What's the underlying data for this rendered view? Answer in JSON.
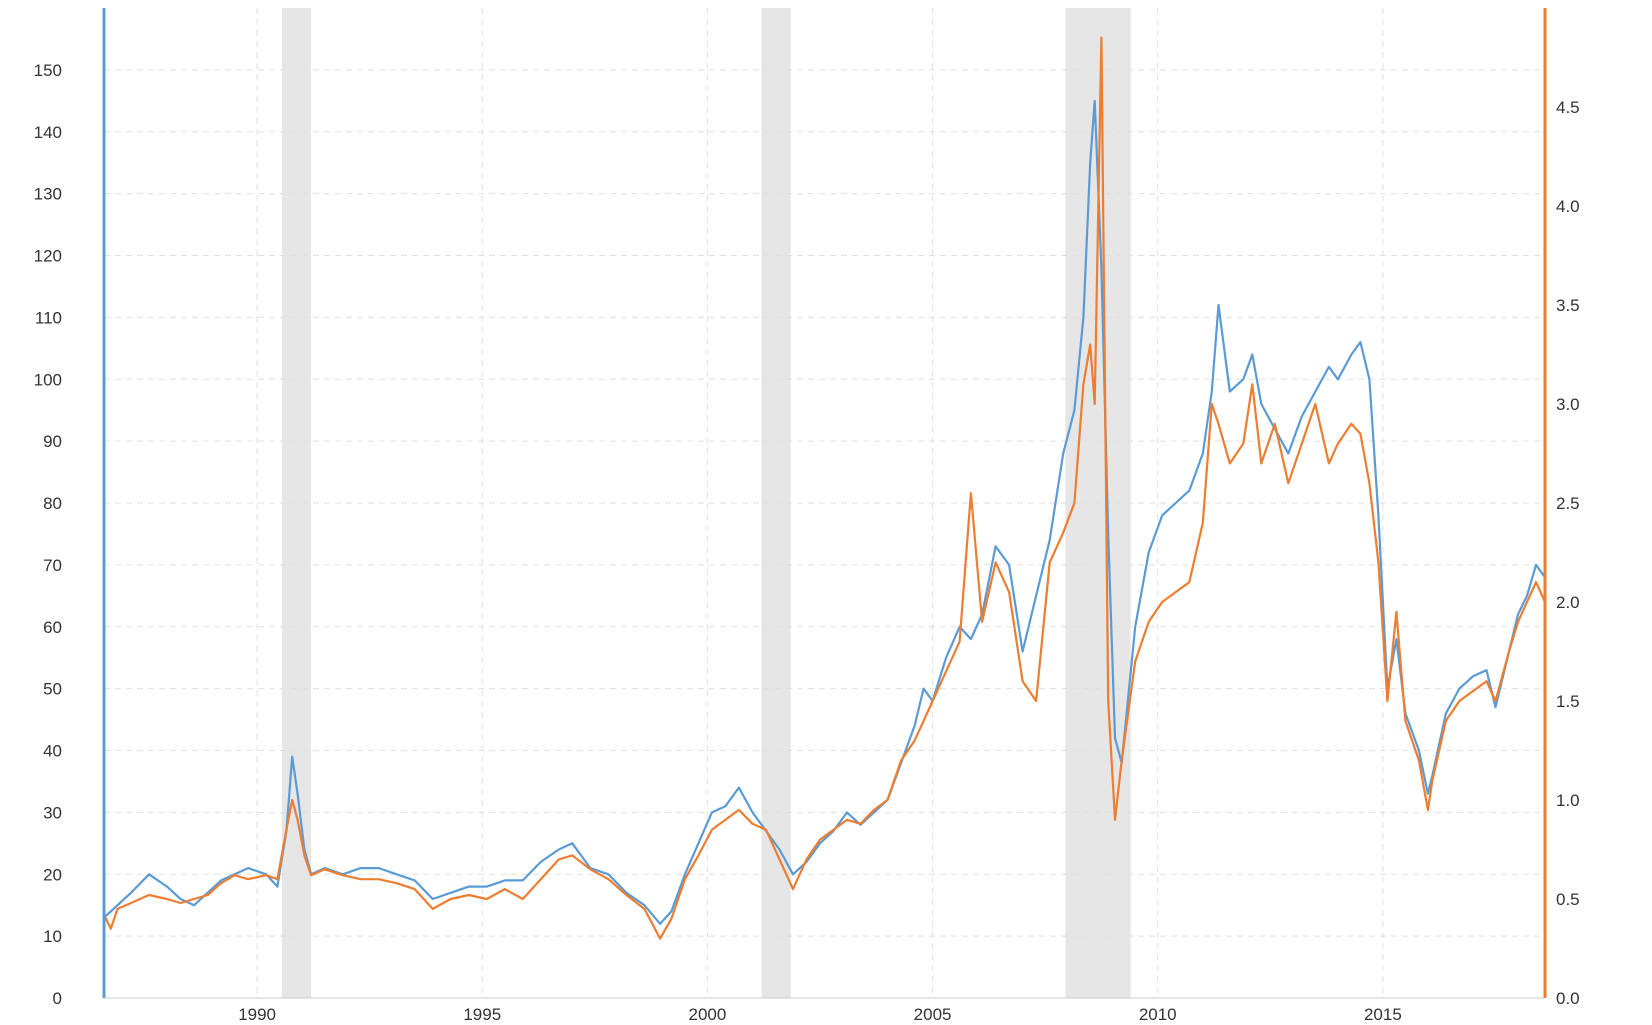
{
  "chart_data": {
    "type": "line",
    "title": "",
    "xlabel": "",
    "ylabel": "",
    "grid": true,
    "xlim": [
      1986.6,
      2018.6
    ],
    "ylim_left": [
      0,
      160
    ],
    "ylim_right": [
      0,
      5.0
    ],
    "x_ticks": [
      1990,
      1995,
      2000,
      2005,
      2010,
      2015
    ],
    "y_left_ticks": [
      0,
      10,
      20,
      30,
      40,
      50,
      60,
      70,
      80,
      90,
      100,
      110,
      120,
      130,
      140,
      150
    ],
    "y_right_ticks": [
      "0.0",
      "0.5",
      "1.0",
      "1.5",
      "2.0",
      "2.5",
      "3.0",
      "3.5",
      "4.0",
      "4.5"
    ],
    "recession_bands": [
      {
        "start": 1990.55,
        "end": 1991.2
      },
      {
        "start": 2001.2,
        "end": 2001.85
      },
      {
        "start": 2007.95,
        "end": 2009.4
      }
    ],
    "series": [
      {
        "axis": "left",
        "color": "#5b9bd5",
        "x": [
          1986.6,
          1986.75,
          1986.9,
          1987.2,
          1987.6,
          1988.0,
          1988.3,
          1988.6,
          1988.9,
          1989.2,
          1989.5,
          1989.8,
          1990.2,
          1990.45,
          1990.65,
          1990.78,
          1990.9,
          1991.05,
          1991.2,
          1991.5,
          1991.9,
          1992.3,
          1992.7,
          1993.1,
          1993.5,
          1993.9,
          1994.3,
          1994.7,
          1995.1,
          1995.5,
          1995.9,
          1996.3,
          1996.7,
          1997.0,
          1997.4,
          1997.8,
          1998.2,
          1998.6,
          1998.95,
          1999.2,
          1999.5,
          1999.8,
          2000.1,
          2000.4,
          2000.7,
          2001.0,
          2001.3,
          2001.6,
          2001.9,
          2002.2,
          2002.5,
          2002.8,
          2003.1,
          2003.4,
          2003.7,
          2004.0,
          2004.3,
          2004.6,
          2004.8,
          2005.0,
          2005.3,
          2005.6,
          2005.85,
          2006.1,
          2006.4,
          2006.7,
          2007.0,
          2007.3,
          2007.6,
          2007.9,
          2008.15,
          2008.35,
          2008.5,
          2008.6,
          2008.75,
          2008.9,
          2009.05,
          2009.2,
          2009.5,
          2009.8,
          2010.1,
          2010.4,
          2010.7,
          2011.0,
          2011.2,
          2011.35,
          2011.6,
          2011.9,
          2012.1,
          2012.3,
          2012.6,
          2012.9,
          2013.2,
          2013.5,
          2013.8,
          2014.0,
          2014.3,
          2014.5,
          2014.7,
          2014.9,
          2015.1,
          2015.3,
          2015.5,
          2015.8,
          2016.0,
          2016.1,
          2016.4,
          2016.7,
          2017.0,
          2017.3,
          2017.5,
          2017.8,
          2018.0,
          2018.2,
          2018.4,
          2018.6
        ],
        "y": [
          13,
          14,
          15,
          17,
          20,
          18,
          16,
          15,
          17,
          19,
          20,
          21,
          20,
          18,
          27,
          39,
          33,
          24,
          20,
          21,
          20,
          21,
          21,
          20,
          19,
          16,
          17,
          18,
          18,
          19,
          19,
          22,
          24,
          25,
          21,
          20,
          17,
          15,
          12,
          14,
          20,
          25,
          30,
          31,
          34,
          30,
          27,
          24,
          20,
          22,
          25,
          27,
          30,
          28,
          30,
          32,
          38,
          44,
          50,
          48,
          55,
          60,
          58,
          62,
          73,
          70,
          56,
          65,
          74,
          88,
          95,
          110,
          135,
          145,
          118,
          75,
          42,
          38,
          60,
          72,
          78,
          80,
          82,
          88,
          98,
          112,
          98,
          100,
          104,
          96,
          92,
          88,
          94,
          98,
          102,
          100,
          104,
          106,
          100,
          78,
          50,
          58,
          46,
          40,
          33,
          36,
          46,
          50,
          52,
          53,
          47,
          56,
          62,
          65,
          70,
          68
        ]
      },
      {
        "axis": "right",
        "color": "#ed7d31",
        "x": [
          1986.6,
          1986.75,
          1986.9,
          1987.2,
          1987.6,
          1988.0,
          1988.3,
          1988.6,
          1988.9,
          1989.2,
          1989.5,
          1989.8,
          1990.2,
          1990.45,
          1990.65,
          1990.78,
          1990.9,
          1991.05,
          1991.2,
          1991.5,
          1991.9,
          1992.3,
          1992.7,
          1993.1,
          1993.5,
          1993.9,
          1994.3,
          1994.7,
          1995.1,
          1995.5,
          1995.9,
          1996.3,
          1996.7,
          1997.0,
          1997.4,
          1997.8,
          1998.2,
          1998.6,
          1998.95,
          1999.2,
          1999.5,
          1999.8,
          2000.1,
          2000.4,
          2000.7,
          2001.0,
          2001.3,
          2001.6,
          2001.9,
          2002.2,
          2002.5,
          2002.8,
          2003.1,
          2003.4,
          2003.7,
          2004.0,
          2004.3,
          2004.6,
          2004.8,
          2005.0,
          2005.3,
          2005.6,
          2005.85,
          2006.1,
          2006.4,
          2006.7,
          2007.0,
          2007.3,
          2007.6,
          2007.9,
          2008.15,
          2008.35,
          2008.5,
          2008.6,
          2008.75,
          2008.9,
          2009.05,
          2009.2,
          2009.5,
          2009.8,
          2010.1,
          2010.4,
          2010.7,
          2011.0,
          2011.2,
          2011.35,
          2011.6,
          2011.9,
          2012.1,
          2012.3,
          2012.6,
          2012.9,
          2013.2,
          2013.5,
          2013.8,
          2014.0,
          2014.3,
          2014.5,
          2014.7,
          2014.9,
          2015.1,
          2015.3,
          2015.5,
          2015.8,
          2016.0,
          2016.1,
          2016.4,
          2016.7,
          2017.0,
          2017.3,
          2017.5,
          2017.8,
          2018.0,
          2018.2,
          2018.4,
          2018.6
        ],
        "y": [
          0.42,
          0.35,
          0.45,
          0.48,
          0.52,
          0.5,
          0.48,
          0.5,
          0.52,
          0.58,
          0.62,
          0.6,
          0.62,
          0.6,
          0.85,
          1.0,
          0.9,
          0.72,
          0.62,
          0.65,
          0.62,
          0.6,
          0.6,
          0.58,
          0.55,
          0.45,
          0.5,
          0.52,
          0.5,
          0.55,
          0.5,
          0.6,
          0.7,
          0.72,
          0.65,
          0.6,
          0.52,
          0.45,
          0.3,
          0.4,
          0.6,
          0.72,
          0.85,
          0.9,
          0.95,
          0.88,
          0.85,
          0.7,
          0.55,
          0.7,
          0.8,
          0.85,
          0.9,
          0.88,
          0.95,
          1.0,
          1.2,
          1.3,
          1.4,
          1.5,
          1.65,
          1.8,
          2.55,
          1.9,
          2.2,
          2.05,
          1.6,
          1.5,
          2.2,
          2.35,
          2.5,
          3.1,
          3.3,
          3.0,
          4.85,
          1.5,
          0.9,
          1.2,
          1.7,
          1.9,
          2.0,
          2.05,
          2.1,
          2.4,
          3.0,
          2.9,
          2.7,
          2.8,
          3.1,
          2.7,
          2.9,
          2.6,
          2.8,
          3.0,
          2.7,
          2.8,
          2.9,
          2.85,
          2.6,
          2.2,
          1.5,
          1.95,
          1.4,
          1.2,
          0.95,
          1.1,
          1.4,
          1.5,
          1.55,
          1.6,
          1.5,
          1.75,
          1.9,
          2.0,
          2.1,
          2.0
        ]
      }
    ]
  }
}
